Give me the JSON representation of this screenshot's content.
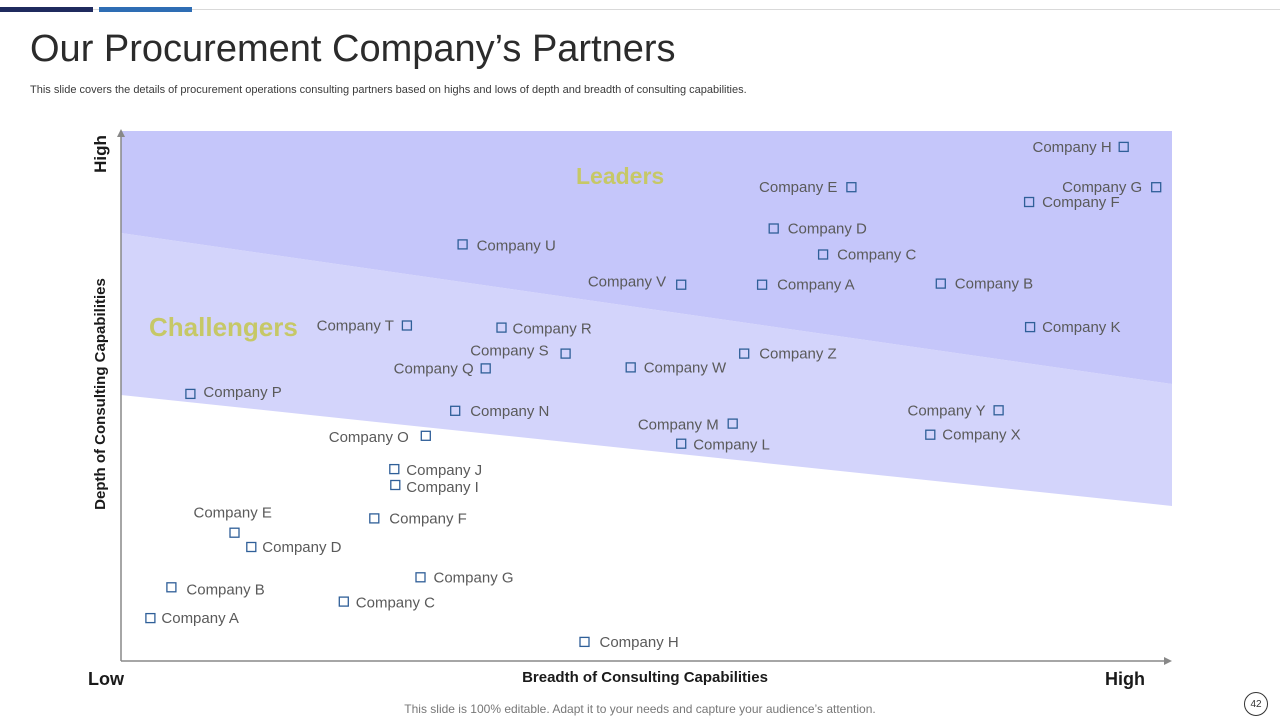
{
  "header": {
    "title": "Our Procurement Company’s Partners",
    "subtitle": "This slide covers the details of procurement operations consulting partners based on highs and lows of depth and breadth of consulting capabilities."
  },
  "chart_data": {
    "type": "scatter",
    "xlabel": "Breadth of Consulting Capabilities",
    "ylabel": "Depth of Consulting Capabilities",
    "x_low_label": "Low",
    "x_high_label": "High",
    "y_high_label": "High",
    "zones": [
      {
        "name": "Leaders",
        "color": "#c5c6fa"
      },
      {
        "name": "Challengers",
        "color": "#d3d4fb"
      }
    ],
    "marker_color": "#2f5f98",
    "points": [
      {
        "label": "Company H",
        "x": 95.4,
        "y": 97.0
      },
      {
        "label": "Company G",
        "x": 98.5,
        "y": 89.4
      },
      {
        "label": "Company F",
        "x": 86.4,
        "y": 86.6
      },
      {
        "label": "Company E",
        "x": 69.5,
        "y": 89.4
      },
      {
        "label": "Company D",
        "x": 62.1,
        "y": 81.6
      },
      {
        "label": "Company C",
        "x": 66.8,
        "y": 76.7
      },
      {
        "label": "Company U",
        "x": 32.5,
        "y": 78.6
      },
      {
        "label": "Company V",
        "x": 53.3,
        "y": 71.0
      },
      {
        "label": "Company A",
        "x": 61.0,
        "y": 71.0
      },
      {
        "label": "Company B",
        "x": 78.0,
        "y": 71.2
      },
      {
        "label": "Company K",
        "x": 86.5,
        "y": 63.0
      },
      {
        "label": "Company T",
        "x": 27.2,
        "y": 63.3
      },
      {
        "label": "Company R",
        "x": 36.2,
        "y": 62.9
      },
      {
        "label": "Company S",
        "x": 42.3,
        "y": 58.0
      },
      {
        "label": "Company Z",
        "x": 59.3,
        "y": 58.0
      },
      {
        "label": "Company Q",
        "x": 34.7,
        "y": 55.2
      },
      {
        "label": "Company W",
        "x": 48.5,
        "y": 55.4
      },
      {
        "label": "Company P",
        "x": 6.6,
        "y": 50.4
      },
      {
        "label": "Company N",
        "x": 31.8,
        "y": 47.2
      },
      {
        "label": "Company Y",
        "x": 83.5,
        "y": 47.3
      },
      {
        "label": "Company M",
        "x": 58.2,
        "y": 44.8
      },
      {
        "label": "Company X",
        "x": 77.0,
        "y": 42.7
      },
      {
        "label": "Company O",
        "x": 29.0,
        "y": 42.5
      },
      {
        "label": "Company L",
        "x": 53.3,
        "y": 41.0
      },
      {
        "label": "Company J",
        "x": 26.0,
        "y": 36.2
      },
      {
        "label": "Company I",
        "x": 26.1,
        "y": 33.2
      },
      {
        "label": "Company F",
        "x": 24.1,
        "y": 26.9
      },
      {
        "label": "Company E",
        "x": 10.8,
        "y": 24.2
      },
      {
        "label": "Company D",
        "x": 12.4,
        "y": 21.5
      },
      {
        "label": "Company G",
        "x": 28.5,
        "y": 15.8
      },
      {
        "label": "Company B",
        "x": 4.8,
        "y": 13.9
      },
      {
        "label": "Company C",
        "x": 21.2,
        "y": 11.2
      },
      {
        "label": "Company A",
        "x": 2.8,
        "y": 8.1
      },
      {
        "label": "Company H",
        "x": 44.1,
        "y": 3.6
      }
    ]
  },
  "footer": {
    "note": "This slide is 100% editable. Adapt it to your needs and capture your audience’s attention.",
    "page_number": "42"
  }
}
